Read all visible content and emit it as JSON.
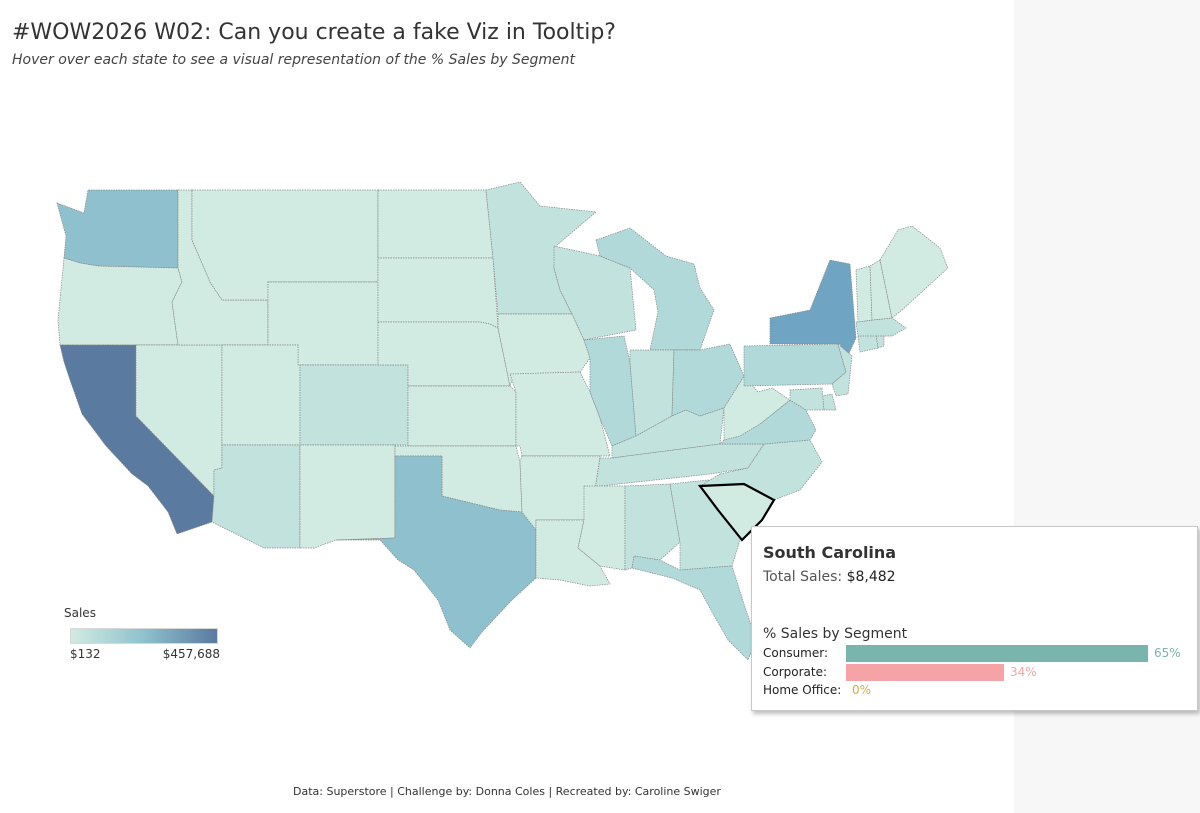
{
  "header": {
    "title": "#WOW2026 W02: Can you create a fake Viz in Tooltip?",
    "subtitle": "Hover over each state to see a visual representation of the % Sales by Segment"
  },
  "map": {
    "highlighted_state": "South Carolina",
    "colors": {
      "lowest": "#d1ebe2",
      "low": "#c2e3dd",
      "mid_low": "#b1d9da",
      "mid": "#8ec1cd",
      "mid_high": "#6fa4c2",
      "high": "#5b7aa0",
      "border": "#888888",
      "highlight_border": "#000000"
    },
    "state_fills": {
      "Washington": "mid",
      "Oregon": "lowest",
      "California": "high",
      "Nevada": "lowest",
      "Idaho": "lowest",
      "Montana": "lowest",
      "Wyoming": "lowest",
      "Utah": "lowest",
      "Arizona": "low",
      "Colorado": "low",
      "New Mexico": "lowest",
      "North Dakota": "lowest",
      "South Dakota": "lowest",
      "Nebraska": "lowest",
      "Kansas": "lowest",
      "Oklahoma": "lowest",
      "Texas": "mid",
      "Minnesota": "low",
      "Iowa": "lowest",
      "Missouri": "lowest",
      "Arkansas": "lowest",
      "Louisiana": "lowest",
      "Wisconsin": "low",
      "Illinois": "mid_low",
      "Michigan": "mid_low",
      "Indiana": "low",
      "Ohio": "mid_low",
      "Kentucky": "low",
      "Tennessee": "low",
      "Mississippi": "lowest",
      "Alabama": "low",
      "Georgia": "low",
      "Florida": "mid_low",
      "South Carolina": "lowest",
      "North Carolina": "low",
      "Virginia": "mid_low",
      "West Virginia": "lowest",
      "Pennsylvania": "mid_low",
      "New York": "mid_high",
      "New Jersey": "low",
      "Delaware": "low",
      "Maryland": "low",
      "Connecticut": "low",
      "Rhode Island": "low",
      "Massachusetts": "low",
      "Vermont": "lowest",
      "New Hampshire": "lowest",
      "Maine": "lowest"
    }
  },
  "legend": {
    "title": "Sales",
    "min_label": "$132",
    "max_label": "$457,688",
    "min_value": 132,
    "max_value": 457688
  },
  "tooltip": {
    "state": "South Carolina",
    "total_sales_label": "Total Sales:",
    "total_sales_value": "$8,482",
    "segment_title": "% Sales by Segment",
    "segments": [
      {
        "name": "Consumer:",
        "pct": 65,
        "pct_label": "65%",
        "color": "#7ab5ad"
      },
      {
        "name": "Corporate:",
        "pct": 34,
        "pct_label": "34%",
        "color": "#f5a3a6"
      },
      {
        "name": "Home Office:",
        "pct": 0,
        "pct_label": "0%",
        "color": "#d4b13f"
      }
    ]
  },
  "footer": {
    "text": "Data: Superstore | Challenge by: Donna Coles | Recreated by: Caroline Swiger"
  }
}
